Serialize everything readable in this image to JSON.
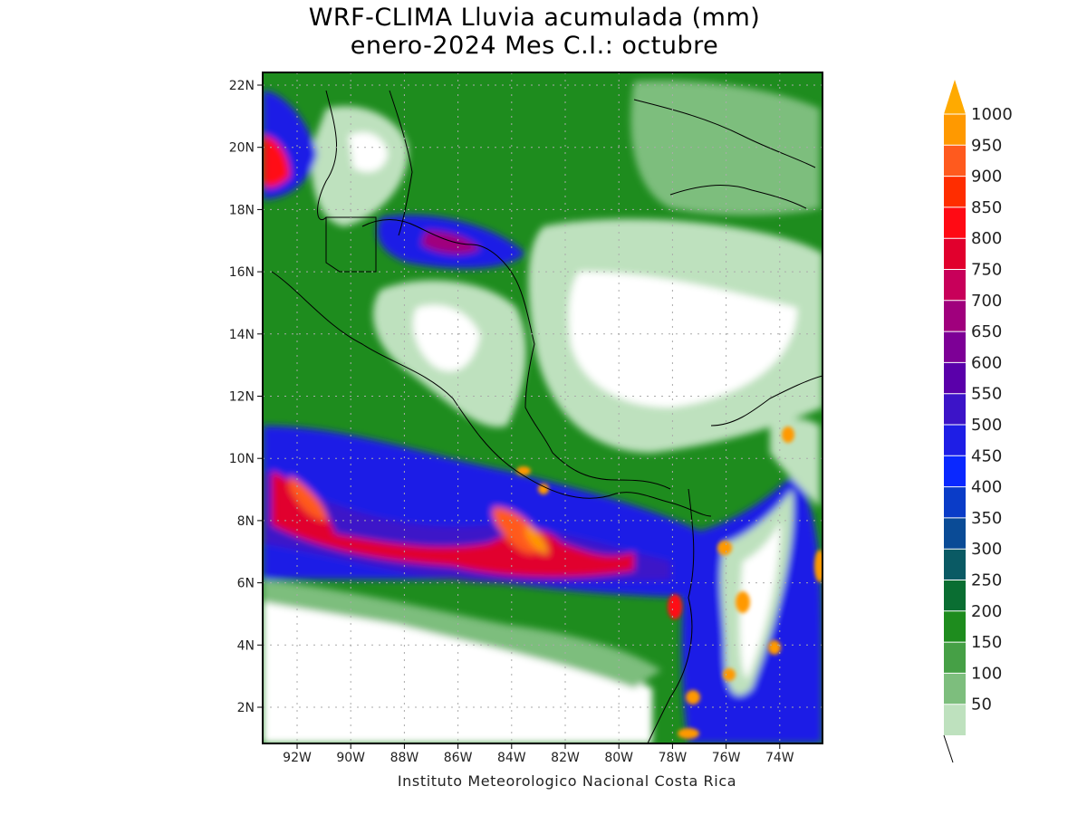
{
  "title": {
    "line1": "WRF-CLIMA Lluvia acumulada (mm)",
    "line2": "enero-2024 Mes C.I.: octubre"
  },
  "credit": "Instituto Meteorologico Nacional Costa Rica",
  "axes": {
    "lon_ticks": [
      "92W",
      "90W",
      "88W",
      "86W",
      "84W",
      "82W",
      "80W",
      "78W",
      "76W",
      "74W"
    ],
    "lat_ticks": [
      "22N",
      "20N",
      "18N",
      "16N",
      "14N",
      "12N",
      "10N",
      "8N",
      "6N",
      "4N",
      "2N"
    ]
  },
  "colorbar": {
    "levels": [
      "1000",
      "950",
      "900",
      "850",
      "800",
      "750",
      "700",
      "650",
      "600",
      "550",
      "500",
      "450",
      "400",
      "350",
      "300",
      "250",
      "200",
      "150",
      "100",
      "50"
    ],
    "colors": [
      "#ff9900",
      "#ff5a1e",
      "#ff2d00",
      "#ff0a14",
      "#e1002d",
      "#c8005a",
      "#a0007d",
      "#7d0096",
      "#5a00aa",
      "#3c14c8",
      "#1e1ee6",
      "#0a28ff",
      "#0a3cc8",
      "#0a4b96",
      "#0a5a64",
      "#0a6e32",
      "#1e8c1e",
      "#46a046",
      "#7dbe7d",
      "#bee1be"
    ],
    "top_arrow_color": "#ffaa00"
  },
  "map_colors": {
    "coast_line": "#000000",
    "grid": "#aaaaaa"
  }
}
